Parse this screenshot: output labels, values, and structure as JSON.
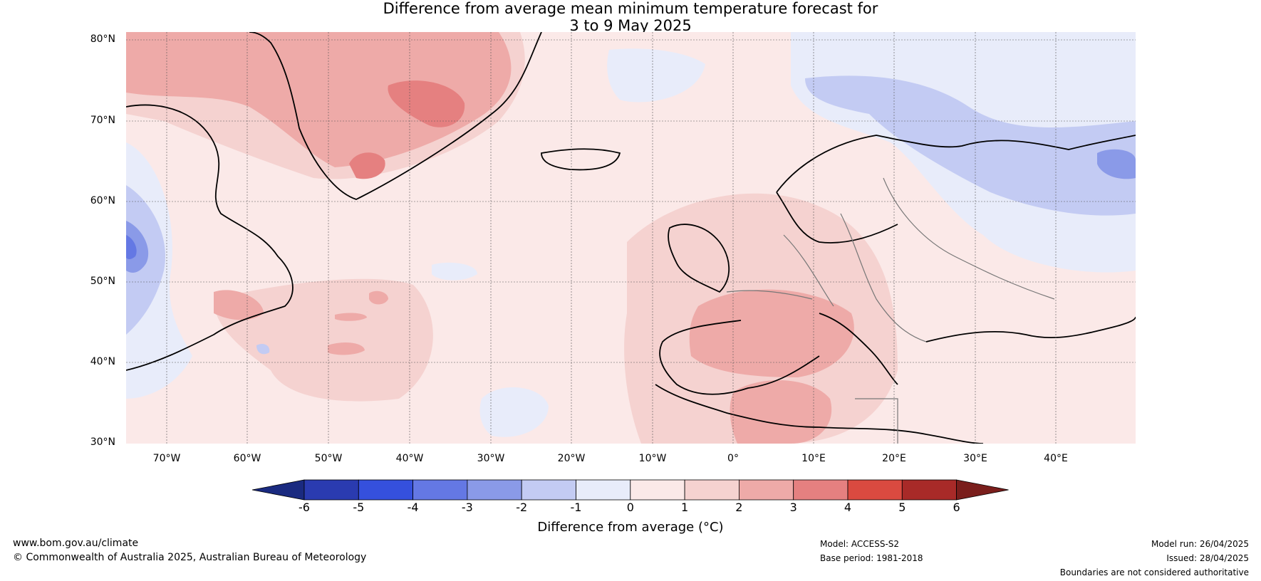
{
  "title_line1": "Difference from average mean minimum temperature forecast for",
  "title_line2": "3 to 9 May 2025",
  "lat_labels": [
    "80°N",
    "70°N",
    "60°N",
    "50°N",
    "40°N",
    "30°N"
  ],
  "lon_labels": [
    "70°W",
    "60°W",
    "50°W",
    "40°W",
    "30°W",
    "20°W",
    "10°W",
    "0°",
    "10°E",
    "20°E",
    "30°E",
    "40°E"
  ],
  "colorbar": {
    "ticks": [
      "-6",
      "-5",
      "-4",
      "-3",
      "-2",
      "-1",
      "0",
      "1",
      "2",
      "3",
      "4",
      "5",
      "6"
    ],
    "label": "Difference from average (°C)",
    "colors": [
      "#1a2a80",
      "#2a3bb0",
      "#3550dd",
      "#6478e4",
      "#8a9ae8",
      "#c3cbf3",
      "#e8ecfa",
      "#fbe9e8",
      "#f5d2d0",
      "#eeaaa8",
      "#e58080",
      "#da4a40",
      "#a82a28",
      "#7a1e1c"
    ]
  },
  "footer": {
    "url": "www.bom.gov.au/climate",
    "copyright": "© Commonwealth of Australia 2025, Australian Bureau of Meteorology",
    "model": "Model: ACCESS-S2",
    "base_period": "Base period: 1981-2018",
    "model_run": "Model run: 26/04/2025",
    "issued": "Issued: 28/04/2025",
    "disclaimer": "Boundaries are not considered authoritative"
  }
}
